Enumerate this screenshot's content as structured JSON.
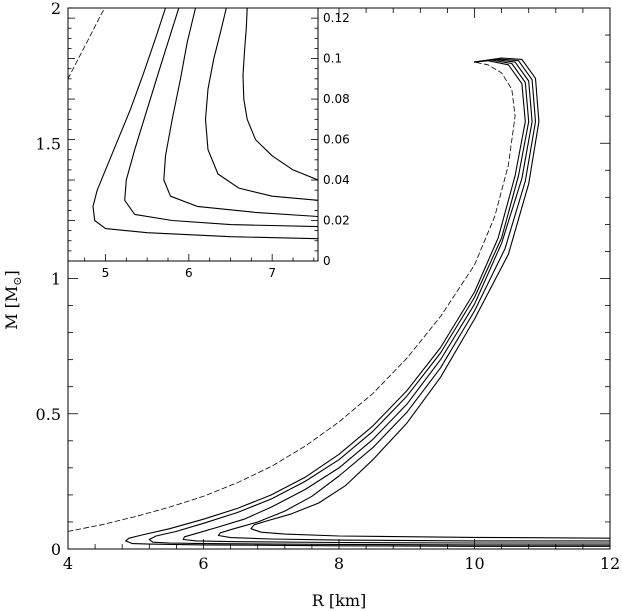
{
  "chart_data": [
    {
      "type": "line",
      "xlabel": "R [km]",
      "ylabel": "M [M",
      "ylabel_unit_symbol": "⊙",
      "ylabel_close": "]",
      "xlim": [
        4,
        12
      ],
      "ylim": [
        0,
        2
      ],
      "xticks": [
        "4",
        "6",
        "8",
        "10",
        "12"
      ],
      "yticks": [
        "0",
        "0.5",
        "1",
        "1.5",
        "2"
      ],
      "grid": false,
      "series": [
        {
          "style": "dashed",
          "points": [
            [
              4.0,
              0.065
            ],
            [
              4.5,
              0.09
            ],
            [
              5.0,
              0.12
            ],
            [
              5.5,
              0.155
            ],
            [
              6.0,
              0.195
            ],
            [
              6.5,
              0.245
            ],
            [
              7.0,
              0.305
            ],
            [
              7.5,
              0.38
            ],
            [
              8.0,
              0.47
            ],
            [
              8.5,
              0.575
            ],
            [
              9.0,
              0.705
            ],
            [
              9.5,
              0.86
            ],
            [
              10.0,
              1.05
            ],
            [
              10.3,
              1.23
            ],
            [
              10.5,
              1.42
            ],
            [
              10.6,
              1.6
            ],
            [
              10.55,
              1.7
            ],
            [
              10.4,
              1.76
            ],
            [
              10.2,
              1.79
            ],
            [
              10.0,
              1.8
            ]
          ]
        },
        {
          "style": "solid",
          "points": [
            [
              12.0,
              0.01
            ],
            [
              10.0,
              0.01
            ],
            [
              8.0,
              0.012
            ],
            [
              6.0,
              0.015
            ],
            [
              5.2,
              0.018
            ],
            [
              4.95,
              0.02
            ],
            [
              4.85,
              0.03
            ],
            [
              4.9,
              0.04
            ],
            [
              5.1,
              0.052
            ],
            [
              5.5,
              0.075
            ],
            [
              6.0,
              0.11
            ],
            [
              6.5,
              0.15
            ],
            [
              7.0,
              0.2
            ],
            [
              7.5,
              0.265
            ],
            [
              8.0,
              0.35
            ],
            [
              8.5,
              0.455
            ],
            [
              9.0,
              0.585
            ],
            [
              9.5,
              0.745
            ],
            [
              10.0,
              0.95
            ],
            [
              10.35,
              1.15
            ],
            [
              10.6,
              1.38
            ],
            [
              10.75,
              1.58
            ],
            [
              10.7,
              1.72
            ],
            [
              10.5,
              1.79
            ],
            [
              10.2,
              1.805
            ],
            [
              10.0,
              1.8
            ]
          ]
        },
        {
          "style": "solid",
          "points": [
            [
              12.0,
              0.015
            ],
            [
              10.0,
              0.015
            ],
            [
              8.0,
              0.017
            ],
            [
              6.0,
              0.02
            ],
            [
              5.5,
              0.022
            ],
            [
              5.25,
              0.025
            ],
            [
              5.2,
              0.035
            ],
            [
              5.3,
              0.048
            ],
            [
              5.6,
              0.065
            ],
            [
              6.0,
              0.095
            ],
            [
              6.5,
              0.135
            ],
            [
              7.0,
              0.185
            ],
            [
              7.5,
              0.25
            ],
            [
              8.0,
              0.33
            ],
            [
              8.5,
              0.435
            ],
            [
              9.0,
              0.565
            ],
            [
              9.5,
              0.725
            ],
            [
              10.0,
              0.93
            ],
            [
              10.4,
              1.15
            ],
            [
              10.65,
              1.38
            ],
            [
              10.8,
              1.58
            ],
            [
              10.75,
              1.725
            ],
            [
              10.55,
              1.795
            ],
            [
              10.25,
              1.808
            ],
            [
              10.0,
              1.8
            ]
          ]
        },
        {
          "style": "solid",
          "points": [
            [
              12.0,
              0.022
            ],
            [
              10.0,
              0.022
            ],
            [
              8.0,
              0.024
            ],
            [
              6.5,
              0.027
            ],
            [
              5.9,
              0.03
            ],
            [
              5.7,
              0.035
            ],
            [
              5.72,
              0.045
            ],
            [
              5.9,
              0.058
            ],
            [
              6.2,
              0.08
            ],
            [
              6.6,
              0.11
            ],
            [
              7.0,
              0.155
            ],
            [
              7.5,
              0.22
            ],
            [
              8.0,
              0.3
            ],
            [
              8.5,
              0.405
            ],
            [
              9.0,
              0.535
            ],
            [
              9.5,
              0.7
            ],
            [
              10.0,
              0.905
            ],
            [
              10.4,
              1.13
            ],
            [
              10.7,
              1.37
            ],
            [
              10.85,
              1.58
            ],
            [
              10.8,
              1.73
            ],
            [
              10.6,
              1.8
            ],
            [
              10.3,
              1.81
            ],
            [
              10.0,
              1.8
            ]
          ]
        },
        {
          "style": "solid",
          "points": [
            [
              12.0,
              0.03
            ],
            [
              10.0,
              0.03
            ],
            [
              8.0,
              0.033
            ],
            [
              7.0,
              0.037
            ],
            [
              6.4,
              0.042
            ],
            [
              6.22,
              0.05
            ],
            [
              6.25,
              0.06
            ],
            [
              6.45,
              0.075
            ],
            [
              6.8,
              0.1
            ],
            [
              7.2,
              0.14
            ],
            [
              7.6,
              0.195
            ],
            [
              8.0,
              0.27
            ],
            [
              8.5,
              0.375
            ],
            [
              9.0,
              0.505
            ],
            [
              9.5,
              0.67
            ],
            [
              10.0,
              0.88
            ],
            [
              10.45,
              1.11
            ],
            [
              10.75,
              1.36
            ],
            [
              10.9,
              1.58
            ],
            [
              10.85,
              1.735
            ],
            [
              10.65,
              1.805
            ],
            [
              10.35,
              1.812
            ],
            [
              10.0,
              1.8
            ]
          ]
        },
        {
          "style": "solid",
          "points": [
            [
              12.0,
              0.04
            ],
            [
              10.0,
              0.043
            ],
            [
              8.0,
              0.048
            ],
            [
              7.2,
              0.055
            ],
            [
              6.85,
              0.062
            ],
            [
              6.7,
              0.075
            ],
            [
              6.75,
              0.09
            ],
            [
              6.95,
              0.105
            ],
            [
              7.3,
              0.13
            ],
            [
              7.7,
              0.17
            ],
            [
              8.1,
              0.235
            ],
            [
              8.5,
              0.33
            ],
            [
              9.0,
              0.465
            ],
            [
              9.5,
              0.635
            ],
            [
              10.0,
              0.85
            ],
            [
              10.5,
              1.09
            ],
            [
              10.8,
              1.35
            ],
            [
              10.95,
              1.58
            ],
            [
              10.9,
              1.74
            ],
            [
              10.7,
              1.81
            ],
            [
              10.4,
              1.815
            ],
            [
              10.0,
              1.8
            ]
          ]
        }
      ]
    },
    {
      "type": "line",
      "xlim": [
        4.55,
        7.55
      ],
      "ylim": [
        0,
        0.125
      ],
      "xticks": [
        "5",
        "6",
        "7"
      ],
      "yticks": [
        "0",
        "0.02",
        "0.04",
        "0.06",
        "0.08",
        "0.1",
        "0.12"
      ],
      "grid": false,
      "series": [
        {
          "style": "dashed",
          "points": [
            [
              4.55,
              0.09
            ],
            [
              4.65,
              0.098
            ],
            [
              4.75,
              0.106
            ],
            [
              4.85,
              0.114
            ],
            [
              4.95,
              0.122
            ],
            [
              5.02,
              0.127
            ]
          ]
        },
        {
          "style": "solid",
          "points": [
            [
              7.55,
              0.011
            ],
            [
              6.5,
              0.012
            ],
            [
              5.5,
              0.014
            ],
            [
              5.0,
              0.016
            ],
            [
              4.87,
              0.02
            ],
            [
              4.85,
              0.027
            ],
            [
              4.9,
              0.035
            ],
            [
              5.0,
              0.045
            ],
            [
              5.15,
              0.06
            ],
            [
              5.3,
              0.075
            ],
            [
              5.45,
              0.092
            ],
            [
              5.6,
              0.11
            ],
            [
              5.72,
              0.125
            ]
          ]
        },
        {
          "style": "solid",
          "points": [
            [
              7.55,
              0.017
            ],
            [
              6.5,
              0.018
            ],
            [
              5.8,
              0.02
            ],
            [
              5.35,
              0.023
            ],
            [
              5.23,
              0.03
            ],
            [
              5.25,
              0.04
            ],
            [
              5.35,
              0.055
            ],
            [
              5.5,
              0.075
            ],
            [
              5.65,
              0.095
            ],
            [
              5.78,
              0.112
            ],
            [
              5.88,
              0.125
            ]
          ]
        },
        {
          "style": "solid",
          "points": [
            [
              7.55,
              0.022
            ],
            [
              6.8,
              0.024
            ],
            [
              6.1,
              0.027
            ],
            [
              5.78,
              0.032
            ],
            [
              5.7,
              0.04
            ],
            [
              5.72,
              0.052
            ],
            [
              5.8,
              0.07
            ],
            [
              5.9,
              0.09
            ],
            [
              5.98,
              0.108
            ],
            [
              6.08,
              0.125
            ]
          ]
        },
        {
          "style": "solid",
          "points": [
            [
              7.55,
              0.03
            ],
            [
              7.0,
              0.032
            ],
            [
              6.6,
              0.036
            ],
            [
              6.35,
              0.043
            ],
            [
              6.23,
              0.055
            ],
            [
              6.2,
              0.07
            ],
            [
              6.23,
              0.085
            ],
            [
              6.3,
              0.1
            ],
            [
              6.38,
              0.113
            ],
            [
              6.45,
              0.125
            ]
          ]
        },
        {
          "style": "solid",
          "points": [
            [
              7.55,
              0.04
            ],
            [
              7.25,
              0.045
            ],
            [
              7.0,
              0.052
            ],
            [
              6.8,
              0.06
            ],
            [
              6.7,
              0.07
            ],
            [
              6.66,
              0.08
            ],
            [
              6.65,
              0.092
            ],
            [
              6.67,
              0.105
            ],
            [
              6.69,
              0.115
            ],
            [
              6.7,
              0.125
            ]
          ]
        }
      ]
    }
  ]
}
